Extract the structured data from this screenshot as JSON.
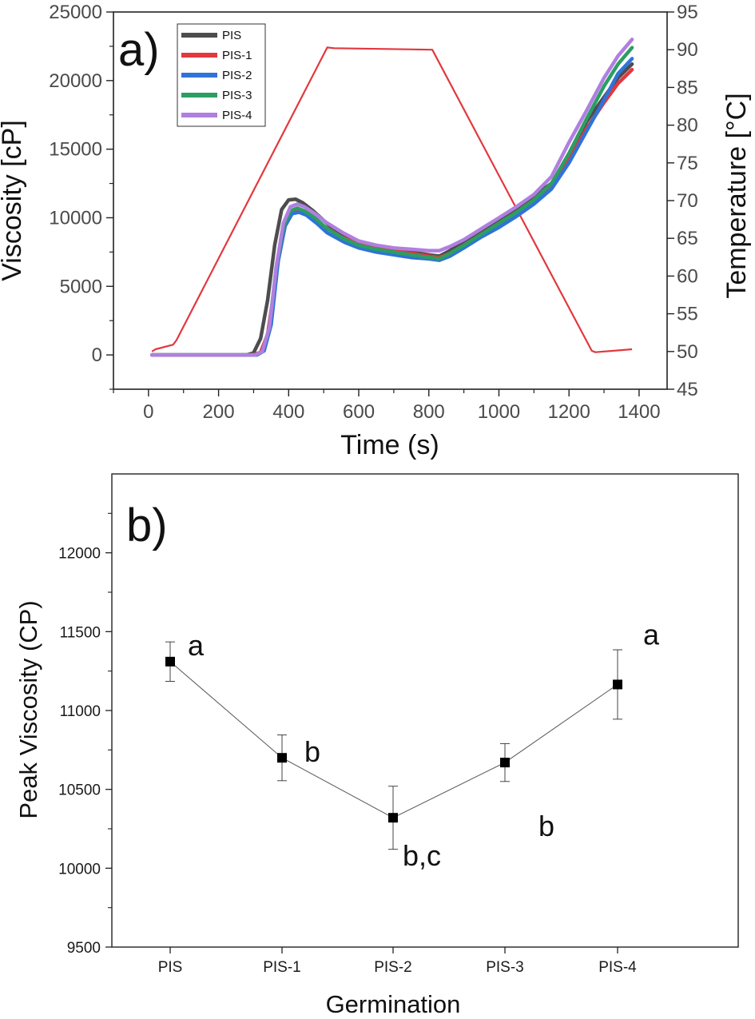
{
  "chart_data": [
    {
      "type": "line",
      "panel_label": "a)",
      "xlabel": "Time (s)",
      "ylabel": "Viscosity [cP]",
      "y2label": "Temperature [°C]",
      "xlim": [
        -100,
        1480
      ],
      "ylim": [
        -2500,
        25000
      ],
      "y2lim": [
        45,
        95
      ],
      "x_ticks": [
        "0",
        "200",
        "400",
        "600",
        "800",
        "1000",
        "1200",
        "1400"
      ],
      "y_ticks": [
        "0",
        "5000",
        "10000",
        "15000",
        "20000",
        "25000"
      ],
      "y2_ticks": [
        "45",
        "50",
        "55",
        "60",
        "65",
        "70",
        "75",
        "80",
        "85",
        "90",
        "95"
      ],
      "legend_position": "top-left",
      "series": [
        {
          "name": "PIS",
          "color": "#4d4d4d",
          "x": [
            10,
            280,
            300,
            320,
            340,
            360,
            380,
            400,
            420,
            440,
            470,
            500,
            550,
            600,
            650,
            700,
            750,
            800,
            830,
            860,
            900,
            950,
            1000,
            1050,
            1100,
            1150,
            1200,
            1250,
            1300,
            1340,
            1380
          ],
          "y": [
            0,
            0,
            150,
            1200,
            4000,
            8000,
            10600,
            11300,
            11350,
            11100,
            10500,
            9800,
            8700,
            8200,
            7900,
            7700,
            7500,
            7300,
            7200,
            7600,
            8300,
            9000,
            9800,
            10700,
            11600,
            12500,
            14500,
            17000,
            18800,
            20200,
            21200
          ]
        },
        {
          "name": "PIS-1",
          "color": "#e2383e",
          "x": [
            10,
            300,
            320,
            340,
            360,
            380,
            400,
            420,
            440,
            470,
            500,
            550,
            600,
            650,
            700,
            750,
            800,
            830,
            860,
            900,
            950,
            1000,
            1050,
            1100,
            1150,
            1200,
            1250,
            1300,
            1340,
            1380
          ],
          "y": [
            0,
            0,
            200,
            1500,
            5000,
            8800,
            10300,
            10600,
            10500,
            10000,
            9400,
            8600,
            8100,
            7800,
            7600,
            7400,
            7200,
            7100,
            7400,
            8000,
            8800,
            9600,
            10400,
            11300,
            12300,
            14200,
            16500,
            18400,
            19800,
            20800
          ]
        },
        {
          "name": "PIS-2",
          "color": "#2f73d8",
          "x": [
            10,
            310,
            330,
            350,
            370,
            390,
            410,
            430,
            450,
            480,
            510,
            560,
            600,
            650,
            700,
            750,
            800,
            830,
            860,
            900,
            950,
            1000,
            1050,
            1100,
            1150,
            1200,
            1250,
            1300,
            1340,
            1380
          ],
          "y": [
            0,
            0,
            300,
            2200,
            6800,
            9400,
            10300,
            10400,
            10200,
            9600,
            8900,
            8200,
            7800,
            7500,
            7300,
            7100,
            7000,
            6900,
            7200,
            7800,
            8600,
            9300,
            10100,
            11000,
            12100,
            14000,
            16300,
            18600,
            20500,
            21600
          ]
        },
        {
          "name": "PIS-3",
          "color": "#2c9e62",
          "x": [
            10,
            305,
            325,
            345,
            365,
            385,
            405,
            425,
            445,
            475,
            505,
            555,
            600,
            650,
            700,
            750,
            800,
            830,
            860,
            900,
            950,
            1000,
            1050,
            1100,
            1150,
            1200,
            1250,
            1300,
            1340,
            1380
          ],
          "y": [
            0,
            0,
            250,
            2000,
            6500,
            9300,
            10500,
            10700,
            10500,
            10000,
            9300,
            8500,
            8000,
            7700,
            7500,
            7300,
            7100,
            7000,
            7400,
            8000,
            8800,
            9600,
            10400,
            11300,
            12500,
            14700,
            17200,
            19600,
            21200,
            22400
          ]
        },
        {
          "name": "PIS-4",
          "color": "#b07fe0",
          "x": [
            10,
            305,
            325,
            345,
            365,
            385,
            405,
            425,
            445,
            475,
            505,
            555,
            600,
            650,
            700,
            750,
            800,
            830,
            860,
            900,
            950,
            1000,
            1050,
            1100,
            1150,
            1200,
            1250,
            1300,
            1340,
            1380
          ],
          "y": [
            0,
            0,
            250,
            2000,
            6500,
            9600,
            10800,
            11000,
            10800,
            10300,
            9700,
            8900,
            8300,
            8000,
            7800,
            7700,
            7600,
            7600,
            7900,
            8400,
            9200,
            10000,
            10800,
            11700,
            13000,
            15500,
            17800,
            20200,
            21800,
            23000
          ]
        }
      ],
      "temperature_series": {
        "name": "Temperature",
        "color": "#e2383e",
        "x": [
          10,
          20,
          70,
          80,
          510,
          530,
          810,
          1265,
          1275,
          1380
        ],
        "y": [
          50,
          50.3,
          50.9,
          51.5,
          90.3,
          90.2,
          90.0,
          50.1,
          49.9,
          50.3
        ]
      }
    },
    {
      "type": "scatter",
      "panel_label": "b)",
      "xlabel": "Germination",
      "ylabel": "Peak Viscosity (CP)",
      "ylim": [
        9500,
        12500
      ],
      "categories": [
        "PIS",
        "PIS-1",
        "PIS-2",
        "PIS-3",
        "PIS-4"
      ],
      "y_ticks": [
        "9500",
        "10000",
        "10500",
        "11000",
        "11500",
        "12000"
      ],
      "values": [
        11310,
        10700,
        10320,
        10670,
        11165
      ],
      "errors": [
        125,
        145,
        200,
        120,
        220
      ],
      "significance_labels": [
        "a",
        "b",
        "b,c",
        "b",
        "a"
      ],
      "color": "#000000"
    }
  ]
}
